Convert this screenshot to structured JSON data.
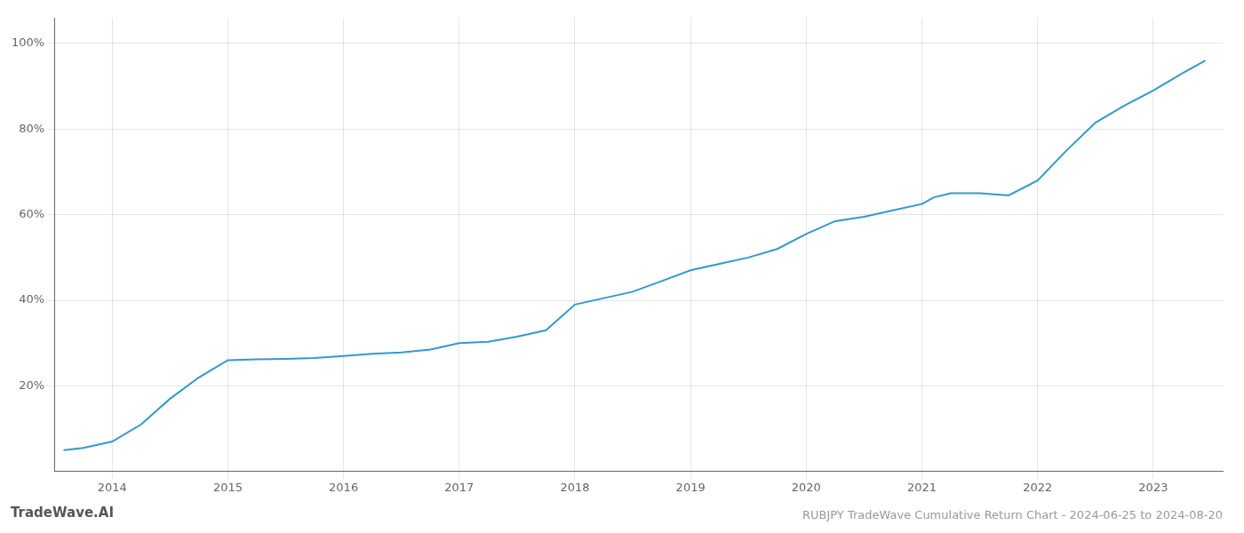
{
  "chart_data": {
    "type": "line",
    "title": "RUBJPY TradeWave Cumulative Return Chart - 2024-06-25 to 2024-08-20",
    "annotations": [
      "TradeWave.AI"
    ],
    "x": [
      2013.58,
      2013.75,
      2014.0,
      2014.25,
      2014.5,
      2014.75,
      2015.0,
      2015.25,
      2015.5,
      2015.75,
      2016.0,
      2016.25,
      2016.5,
      2016.75,
      2017.0,
      2017.25,
      2017.5,
      2017.75,
      2018.0,
      2018.25,
      2018.5,
      2018.75,
      2019.0,
      2019.25,
      2019.5,
      2019.75,
      2020.0,
      2020.25,
      2020.5,
      2020.75,
      2021.0,
      2021.1,
      2021.25,
      2021.5,
      2021.75,
      2022.0,
      2022.25,
      2022.5,
      2022.75,
      2023.0,
      2023.25,
      2023.45
    ],
    "values": [
      5.0,
      5.5,
      7.0,
      11.0,
      17.0,
      22.0,
      26.0,
      26.2,
      26.3,
      26.5,
      27.0,
      27.5,
      27.8,
      28.5,
      30.0,
      30.3,
      31.5,
      33.0,
      39.0,
      40.5,
      42.0,
      44.5,
      47.0,
      48.5,
      50.0,
      52.0,
      55.5,
      58.5,
      59.5,
      61.0,
      62.5,
      64.0,
      65.0,
      65.0,
      64.5,
      68.0,
      75.0,
      81.5,
      85.5,
      89.0,
      93.0,
      96.0
    ],
    "color": "#3399cc",
    "xlim": [
      2013.5,
      2023.6
    ],
    "xticks": [
      2014,
      2015,
      2016,
      2017,
      2018,
      2019,
      2020,
      2021,
      2022,
      2023
    ],
    "ylim": [
      0,
      106
    ],
    "yticks": [
      {
        "value": 20,
        "label": "20%"
      },
      {
        "value": 40,
        "label": "40%"
      },
      {
        "value": 60,
        "label": "60%"
      },
      {
        "value": 80,
        "label": "80%"
      },
      {
        "value": 100,
        "label": "100%"
      }
    ],
    "grid": true
  }
}
